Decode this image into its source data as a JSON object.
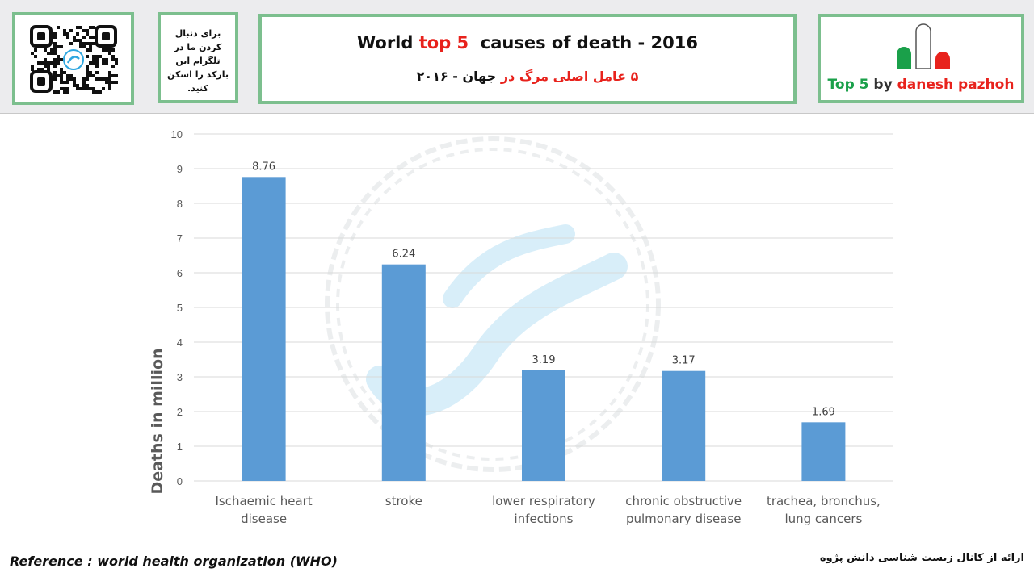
{
  "header": {
    "telegram_note": "برای دنبال کردن ما در تلگرام این بارکد را اسکن کنید.",
    "title_en_part1": "World ",
    "title_en_highlight": "top 5",
    "title_en_part2": "  causes of death - 2016",
    "title_fa_red": "۵ عامل اصلی مرگ در",
    "title_fa_black": " جهان - ۲۰۱۶",
    "brand": {
      "top5": "Top 5",
      "by": "by",
      "name": "danesh pazhoh"
    }
  },
  "chart_data": {
    "type": "bar",
    "categories": [
      [
        "Ischaemic heart",
        "disease"
      ],
      [
        "stroke"
      ],
      [
        "lower respiratory",
        "infections"
      ],
      [
        "chronic obstructive",
        "pulmonary disease"
      ],
      [
        "trachea, bronchus,",
        "lung cancers"
      ]
    ],
    "values": [
      8.76,
      6.24,
      3.19,
      3.17,
      1.69
    ],
    "value_labels": [
      "8.76",
      "6.24",
      "3.19",
      "3.17",
      "1.69"
    ],
    "ylabel": "Deaths in million",
    "ylim": [
      0,
      10
    ],
    "yticks": [
      0,
      1,
      2,
      3,
      4,
      5,
      6,
      7,
      8,
      9,
      10
    ],
    "grid": true,
    "bar_color": "#5b9bd5",
    "grid_color": "#d9d9d9"
  },
  "footer": {
    "reference": "Reference : world health organization (WHO)",
    "credit": "ارائه از کانال زیست شناسی دانش پژوه"
  },
  "colors": {
    "frame_green": "#7cbf8e",
    "accent_red": "#e8221c",
    "brand_green": "#1aa04a"
  }
}
